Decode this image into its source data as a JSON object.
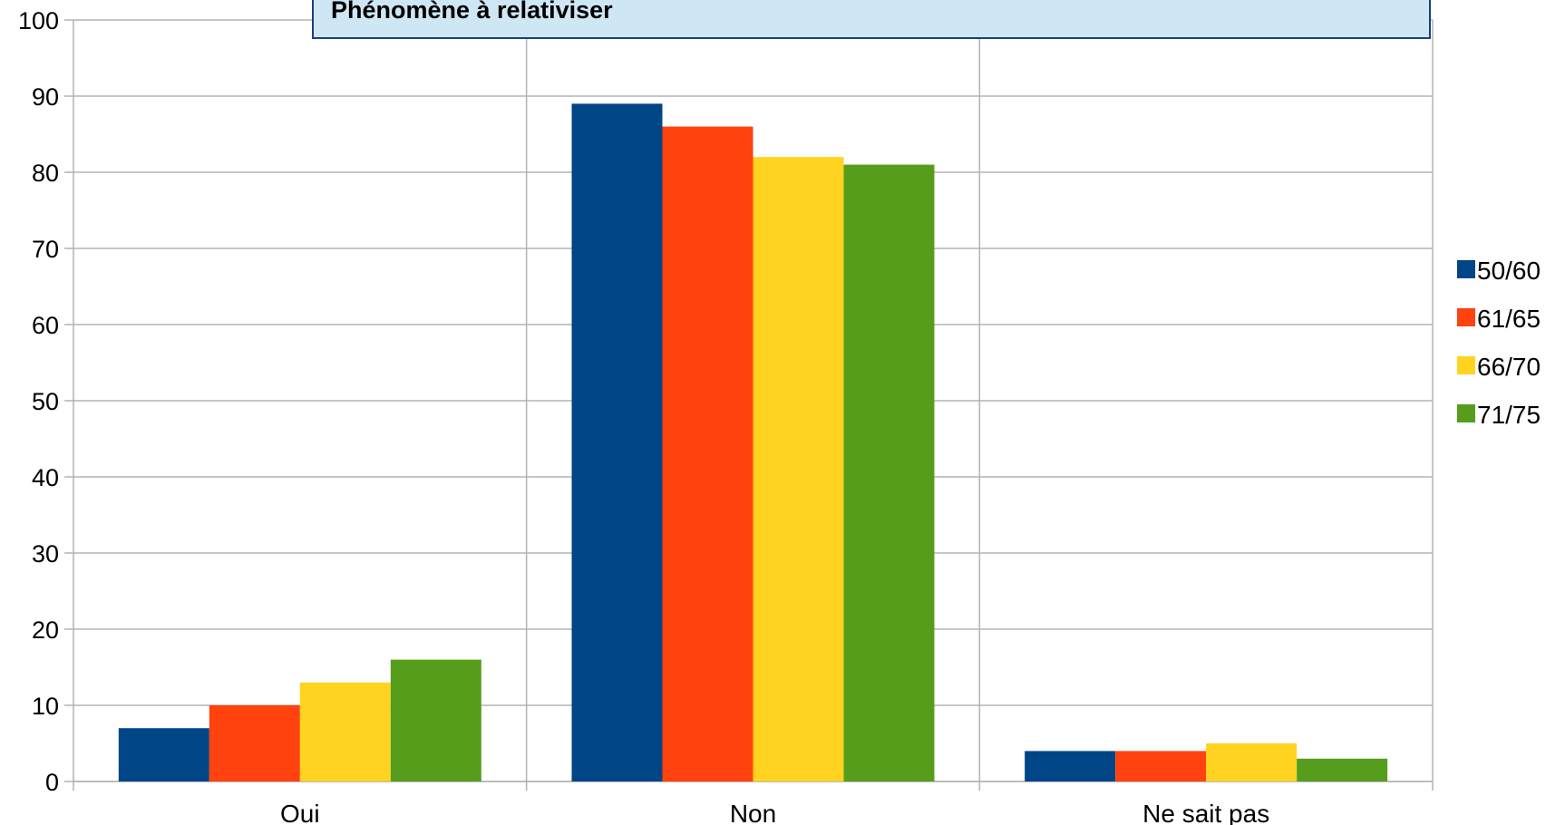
{
  "chart_data": {
    "type": "bar",
    "title": "",
    "xlabel": "",
    "ylabel": "",
    "categories": [
      "Oui",
      "Non",
      "Ne sait pas"
    ],
    "series": [
      {
        "name": "50/60",
        "color": "#004586",
        "values": [
          7,
          89,
          4
        ]
      },
      {
        "name": "61/65",
        "color": "#ff420e",
        "values": [
          10,
          86,
          4
        ]
      },
      {
        "name": "66/70",
        "color": "#ffd320",
        "values": [
          13,
          82,
          5
        ]
      },
      {
        "name": "71/75",
        "color": "#579d1c",
        "values": [
          16,
          81,
          3
        ]
      }
    ],
    "ylim": [
      0,
      100
    ],
    "yticks": [
      0,
      10,
      20,
      30,
      40,
      50,
      60,
      70,
      80,
      90,
      100
    ],
    "grid": true,
    "legend": "right",
    "annotation": "Phénomène à relativiser"
  }
}
